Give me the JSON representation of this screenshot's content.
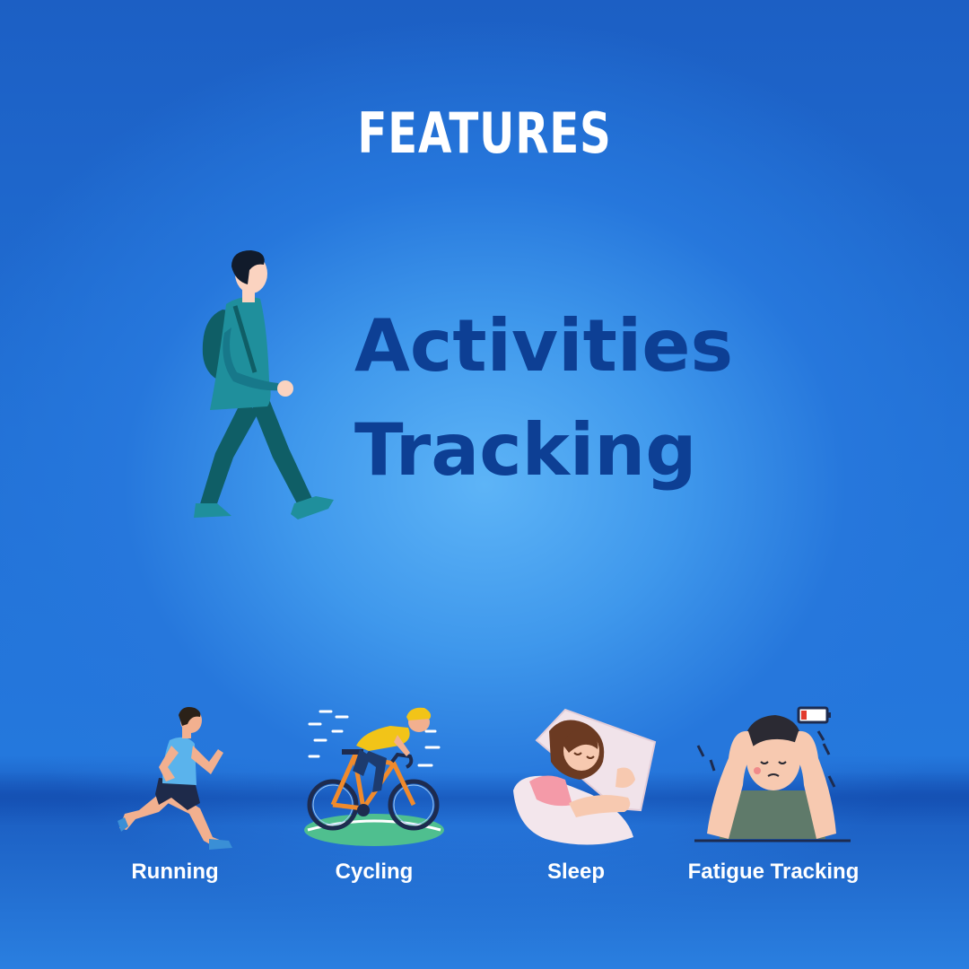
{
  "header": {
    "title": "FEATURES"
  },
  "headline": {
    "line1": "Activities",
    "line2": "Tracking"
  },
  "features": [
    {
      "label": "Running",
      "icon": "running-person-icon"
    },
    {
      "label": "Cycling",
      "icon": "cyclist-icon"
    },
    {
      "label": "Sleep",
      "icon": "sleeping-woman-icon"
    },
    {
      "label": "Fatigue Tracking",
      "icon": "tired-man-icon"
    }
  ],
  "colors": {
    "headline": "#0d3f94",
    "background_center": "#5db4f7",
    "background_edge": "#1c5fc4"
  }
}
